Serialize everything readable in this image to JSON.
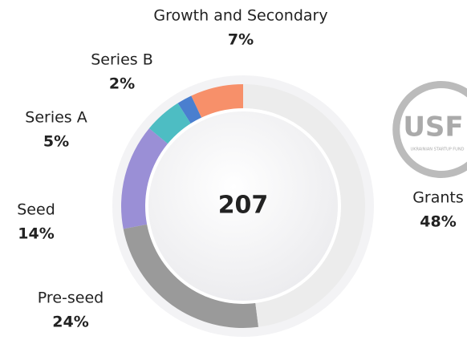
{
  "chart_data": {
    "type": "pie",
    "categories": [
      "Growth and Secondary",
      "Series B",
      "Series A",
      "Seed",
      "Pre-seed",
      "Grants"
    ],
    "values": [
      7,
      2,
      5,
      14,
      24,
      48
    ],
    "value_labels": [
      "7%",
      "2%",
      "5%",
      "14%",
      "24%",
      "48%"
    ],
    "colors": [
      "#f7906a",
      "#4a7fcf",
      "#4dbdc3",
      "#9a8fd6",
      "#9a9a9a",
      "#ececec"
    ],
    "center_label": "207",
    "direction": "counterclockwise"
  },
  "logo": {
    "text": "USF",
    "subtitle": "UKRAINIAN STARTUP FUND"
  }
}
